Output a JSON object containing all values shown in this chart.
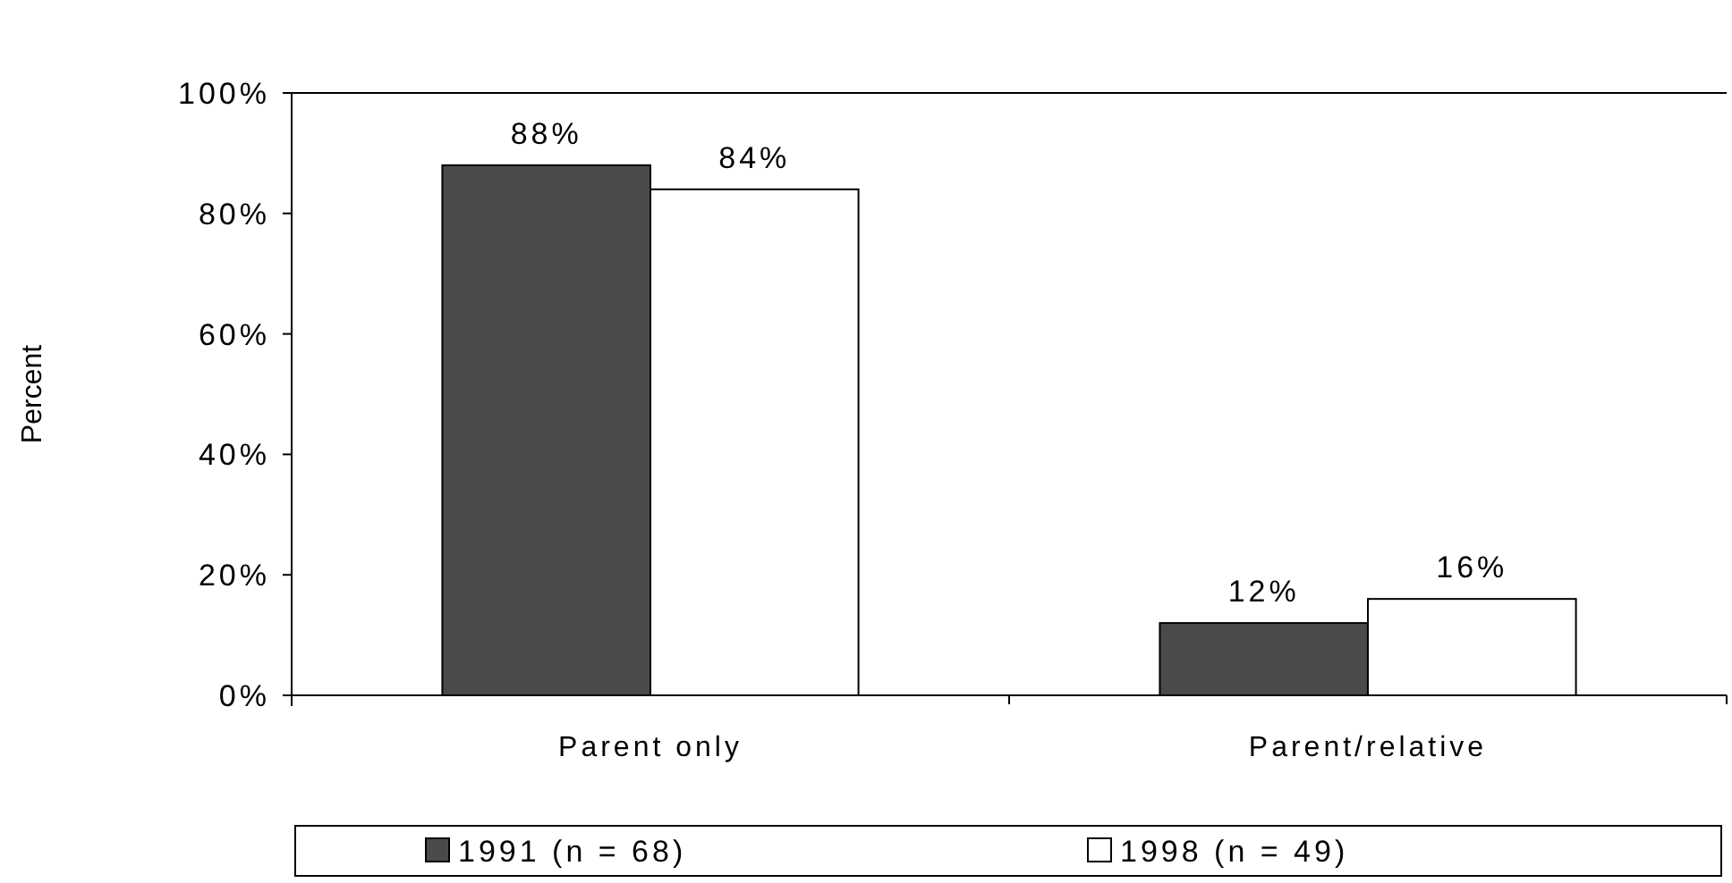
{
  "chart_data": {
    "type": "bar",
    "ylabel": "Percent",
    "categories": [
      "Parent only",
      "Parent/relative"
    ],
    "series": [
      {
        "name": "1991 (n = 68)",
        "color": "#4a4a4a",
        "values": [
          88,
          12
        ]
      },
      {
        "name": "1998 (n = 49)",
        "color": "#ffffff",
        "values": [
          84,
          16
        ]
      }
    ],
    "ylim": [
      0,
      100
    ],
    "yticks": [
      {
        "value": 0,
        "label": "0%"
      },
      {
        "value": 20,
        "label": "20%"
      },
      {
        "value": 40,
        "label": "40%"
      },
      {
        "value": 60,
        "label": "60%"
      },
      {
        "value": 80,
        "label": "80%"
      },
      {
        "value": 100,
        "label": "100%"
      }
    ],
    "value_labels": [
      [
        "88%",
        "12%"
      ],
      [
        "84%",
        "16%"
      ]
    ],
    "legend": "bottom",
    "grid": false
  }
}
